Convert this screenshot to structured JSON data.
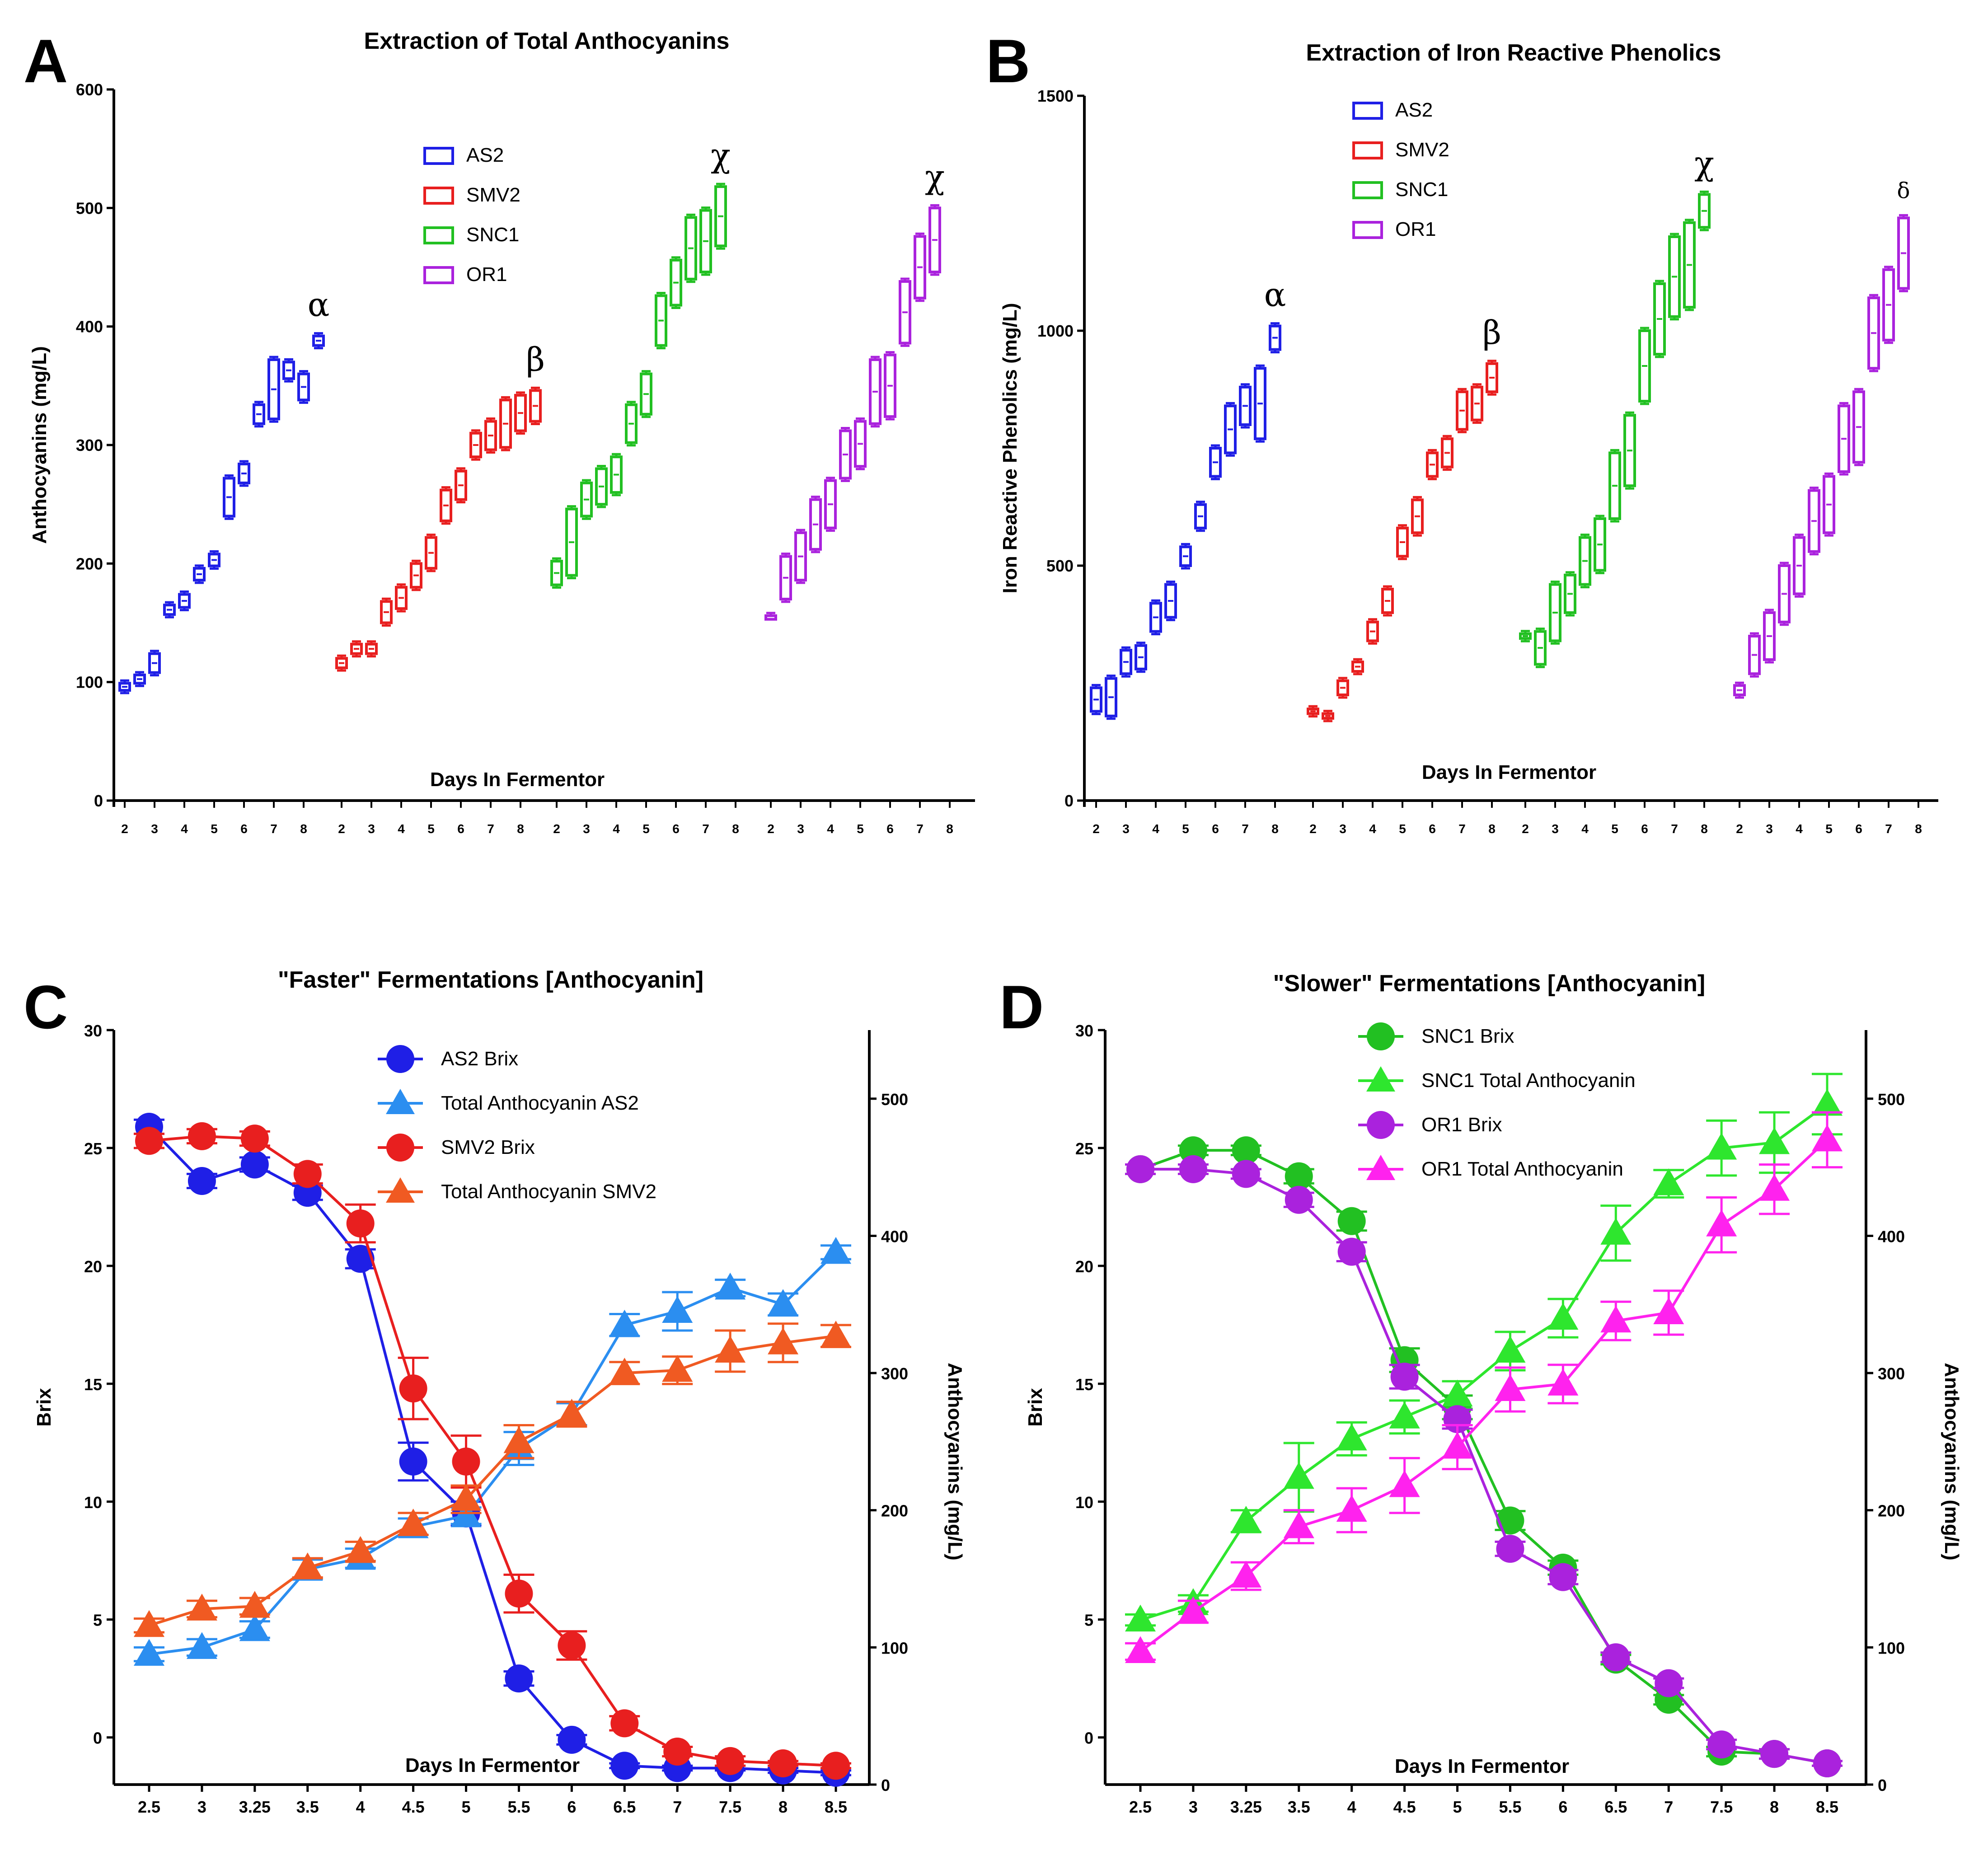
{
  "colors": {
    "AS2": "#1f1fe6",
    "SMV2": "#e81f1f",
    "SNC1": "#22c022",
    "OR1": "#aa22dd",
    "TotalAS2": "#2b8ef0",
    "TotalSMV2": "#f05a22",
    "SNC1Total": "#2ee62e",
    "OR1Total": "#ff22ee"
  },
  "chart_data": [
    {
      "panel": "A",
      "type": "box",
      "title": "Extraction of Total Anthocyanins",
      "ylabel": "Anthocyanins (mg/L)",
      "xlabel": "Days In Fermentor",
      "ylim": [
        0,
        600
      ],
      "yticks": [
        0,
        100,
        200,
        300,
        400,
        500,
        600
      ],
      "legend": [
        "AS2",
        "SMV2",
        "SNC1",
        "OR1"
      ],
      "groups": [
        {
          "name": "AS2",
          "color_key": "AS2",
          "annotation": "α",
          "ticks": [
            "2",
            "3",
            "4",
            "5",
            "6",
            "7",
            "8"
          ],
          "boxes": [
            [
              93,
              99
            ],
            [
              99,
              106
            ],
            [
              108,
              124
            ],
            [
              157,
              165
            ],
            [
              163,
              174
            ],
            [
              186,
              196
            ],
            [
              198,
              208
            ],
            [
              240,
              272
            ],
            [
              268,
              284
            ],
            [
              318,
              334
            ],
            [
              322,
              372
            ],
            [
              356,
              370
            ],
            [
              338,
              360
            ],
            [
              384,
              392
            ]
          ]
        },
        {
          "name": "SMV2",
          "color_key": "SMV2",
          "annotation": "β",
          "ticks": [
            "2",
            "3",
            "4",
            "5",
            "6",
            "7",
            "8"
          ],
          "boxes": [
            [
              112,
              120
            ],
            [
              124,
              132
            ],
            [
              124,
              132
            ],
            [
              150,
              168
            ],
            [
              162,
              180
            ],
            [
              180,
              200
            ],
            [
              196,
              222
            ],
            [
              236,
              262
            ],
            [
              254,
              278
            ],
            [
              290,
              310
            ],
            [
              296,
              320
            ],
            [
              298,
              338
            ],
            [
              312,
              342
            ],
            [
              320,
              346
            ]
          ]
        },
        {
          "name": "SNC1",
          "color_key": "SNC1",
          "annotation": "χ",
          "ticks": [
            "2",
            "3",
            "4",
            "5",
            "6",
            "7",
            "8"
          ],
          "boxes": [
            [
              182,
              202
            ],
            [
              190,
              246
            ],
            [
              240,
              268
            ],
            [
              250,
              280
            ],
            [
              260,
              290
            ],
            [
              302,
              334
            ],
            [
              326,
              360
            ],
            [
              384,
              426
            ],
            [
              418,
              456
            ],
            [
              440,
              492
            ],
            [
              446,
              498
            ],
            [
              468,
              518
            ]
          ]
        },
        {
          "name": "OR1",
          "color_key": "OR1",
          "annotation": "χ",
          "ticks": [
            "2",
            "3",
            "4",
            "5",
            "6",
            "7",
            "8"
          ],
          "boxes": [
            [
              156,
              156
            ],
            [
              170,
              206
            ],
            [
              186,
              226
            ],
            [
              212,
              254
            ],
            [
              230,
              270
            ],
            [
              272,
              312
            ],
            [
              282,
              320
            ],
            [
              318,
              372
            ],
            [
              324,
              376
            ],
            [
              386,
              438
            ],
            [
              424,
              476
            ],
            [
              446,
              500
            ]
          ]
        }
      ]
    },
    {
      "panel": "B",
      "type": "box",
      "title": "Extraction of Iron Reactive Phenolics",
      "ylabel": "Iron Reactive Phenolics (mg/L)",
      "xlabel": "Days In Fermentor",
      "ylim": [
        0,
        1500
      ],
      "yticks": [
        0,
        500,
        1000,
        1500
      ],
      "legend": [
        "AS2",
        "SMV2",
        "SNC1",
        "OR1"
      ],
      "groups": [
        {
          "name": "AS2",
          "color_key": "AS2",
          "annotation": "α",
          "ticks": [
            "2",
            "3",
            "4",
            "5",
            "6",
            "7",
            "8"
          ],
          "boxes": [
            [
              190,
              240
            ],
            [
              180,
              260
            ],
            [
              270,
              320
            ],
            [
              280,
              330
            ],
            [
              360,
              420
            ],
            [
              390,
              460
            ],
            [
              500,
              540
            ],
            [
              580,
              630
            ],
            [
              690,
              750
            ],
            [
              740,
              840
            ],
            [
              800,
              880
            ],
            [
              770,
              920
            ],
            [
              960,
              1010
            ]
          ]
        },
        {
          "name": "SMV2",
          "color_key": "SMV2",
          "annotation": "β",
          "ticks": [
            "2",
            "3",
            "4",
            "5",
            "6",
            "7",
            "8"
          ],
          "boxes": [
            [
              185,
              195
            ],
            [
              175,
              185
            ],
            [
              225,
              255
            ],
            [
              275,
              295
            ],
            [
              340,
              380
            ],
            [
              400,
              450
            ],
            [
              520,
              580
            ],
            [
              570,
              640
            ],
            [
              690,
              740
            ],
            [
              710,
              770
            ],
            [
              790,
              870
            ],
            [
              810,
              880
            ],
            [
              870,
              930
            ]
          ]
        },
        {
          "name": "SNC1",
          "color_key": "SNC1",
          "annotation": "χ",
          "ticks": [
            "2",
            "3",
            "4",
            "5",
            "6",
            "7",
            "8"
          ],
          "boxes": [
            [
              345,
              355
            ],
            [
              290,
              360
            ],
            [
              340,
              460
            ],
            [
              400,
              480
            ],
            [
              460,
              560
            ],
            [
              490,
              600
            ],
            [
              600,
              740
            ],
            [
              670,
              820
            ],
            [
              850,
              1000
            ],
            [
              950,
              1100
            ],
            [
              1030,
              1200
            ],
            [
              1050,
              1230
            ],
            [
              1220,
              1290
            ]
          ]
        },
        {
          "name": "OR1",
          "color_key": "OR1",
          "annotation": "δ",
          "ticks": [
            "2",
            "3",
            "4",
            "5",
            "6",
            "7",
            "8"
          ],
          "boxes": [
            [
              225,
              245
            ],
            [
              270,
              350
            ],
            [
              300,
              400
            ],
            [
              380,
              500
            ],
            [
              440,
              560
            ],
            [
              530,
              660
            ],
            [
              570,
              690
            ],
            [
              700,
              840
            ],
            [
              720,
              870
            ],
            [
              920,
              1070
            ],
            [
              980,
              1130
            ],
            [
              1090,
              1240
            ]
          ]
        }
      ]
    },
    {
      "panel": "C",
      "type": "line",
      "title": "\"Faster\" Fermentations [Anthocyanin]",
      "ylabel": "Brix",
      "y2label": "Anthocyanins (mg/L)",
      "xlabel": "Days In Fermentor",
      "categories": [
        "2.5",
        "3",
        "3.25",
        "3.5",
        "4",
        "4.5",
        "5",
        "5.5",
        "6",
        "6.5",
        "7",
        "7.5",
        "8",
        "8.5"
      ],
      "ylim": [
        -2,
        30
      ],
      "yticks": [
        0,
        5,
        10,
        15,
        20,
        25,
        30
      ],
      "y2lim": [
        0,
        550
      ],
      "y2ticks": [
        0,
        100,
        200,
        300,
        400,
        500
      ],
      "series": [
        {
          "name": "AS2 Brix",
          "axis": "left",
          "marker": "circle",
          "color_key": "AS2",
          "values": [
            25.9,
            23.6,
            24.3,
            23.1,
            20.3,
            11.7,
            9.5,
            2.5,
            -0.1,
            -1.2,
            -1.3,
            -1.3,
            -1.4,
            -1.5
          ],
          "err": [
            0.3,
            0.3,
            0.3,
            0.3,
            0.4,
            0.8,
            0.5,
            0.3,
            0.2,
            0.1,
            0.1,
            0.1,
            0.1,
            0.1
          ]
        },
        {
          "name": "Total Anthocyanin AS2",
          "axis": "right",
          "marker": "triangle",
          "color_key": "TotalAS2",
          "values": [
            95,
            100,
            113,
            157,
            165,
            188,
            196,
            245,
            270,
            335,
            345,
            362,
            350,
            388
          ],
          "err": [
            5,
            6,
            6,
            7,
            7,
            6,
            6,
            12,
            8,
            8,
            14,
            6,
            8,
            5
          ]
        },
        {
          "name": "SMV2 Brix",
          "axis": "left",
          "marker": "circle",
          "color_key": "SMV2",
          "values": [
            25.3,
            25.5,
            25.4,
            23.9,
            21.8,
            14.8,
            11.7,
            6.1,
            3.9,
            0.6,
            -0.6,
            -1.0,
            -1.1,
            -1.2
          ],
          "err": [
            0.3,
            0.3,
            0.3,
            0.4,
            0.8,
            1.3,
            1.1,
            0.8,
            0.6,
            0.3,
            0.2,
            0.2,
            0.1,
            0.1
          ]
        },
        {
          "name": "Total Anthocyanin SMV2",
          "axis": "right",
          "marker": "triangle",
          "color_key": "TotalSMV2",
          "values": [
            116,
            128,
            130,
            158,
            170,
            190,
            208,
            250,
            270,
            300,
            302,
            316,
            322,
            327
          ],
          "err": [
            5,
            6,
            6,
            7,
            7,
            8,
            10,
            12,
            9,
            8,
            10,
            15,
            14,
            8
          ]
        }
      ]
    },
    {
      "panel": "D",
      "type": "line",
      "title": "\"Slower\" Fermentations [Anthocyanin]",
      "ylabel": "Brix",
      "y2label": "Anthocyanins (mg/L)",
      "xlabel": "Days In Fermentor",
      "categories": [
        "2.5",
        "3",
        "3.25",
        "3.5",
        "4",
        "4.5",
        "5",
        "5.5",
        "6",
        "6.5",
        "7",
        "7.5",
        "8",
        "8.5"
      ],
      "ylim": [
        -2,
        30
      ],
      "yticks": [
        0,
        5,
        10,
        15,
        20,
        25,
        30
      ],
      "y2lim": [
        0,
        550
      ],
      "y2ticks": [
        0,
        100,
        200,
        300,
        400,
        500
      ],
      "series": [
        {
          "name": "SNC1 Brix",
          "axis": "left",
          "marker": "circle",
          "color_key": "SNC1",
          "values": [
            24.1,
            24.9,
            24.9,
            23.8,
            21.9,
            16.0,
            14.0,
            9.2,
            7.2,
            3.3,
            1.6,
            -0.6,
            -0.7,
            -1.1
          ],
          "err": [
            0.2,
            0.2,
            0.2,
            0.3,
            0.4,
            0.5,
            0.5,
            0.4,
            0.3,
            0.2,
            0.2,
            0.2,
            0.2,
            0.1
          ]
        },
        {
          "name": "SNC1 Total Anthocyanin",
          "axis": "right",
          "marker": "triangle",
          "color_key": "SNC1Total",
          "values": [
            120,
            132,
            192,
            224,
            252,
            268,
            284,
            316,
            340,
            402,
            438,
            464,
            468,
            496
          ],
          "err": [
            4,
            6,
            8,
            25,
            12,
            12,
            10,
            14,
            14,
            20,
            10,
            20,
            22,
            22
          ]
        },
        {
          "name": "OR1 Brix",
          "axis": "left",
          "marker": "circle",
          "color_key": "OR1",
          "values": [
            24.1,
            24.1,
            23.9,
            22.8,
            20.6,
            15.3,
            13.5,
            8.0,
            6.8,
            3.4,
            2.3,
            -0.3,
            -0.7,
            -1.1
          ],
          "err": [
            0.2,
            0.2,
            0.2,
            0.3,
            0.4,
            0.5,
            0.4,
            0.3,
            0.3,
            0.2,
            0.2,
            0.2,
            0.2,
            0.1
          ]
        },
        {
          "name": "OR1 Total Anthocyanin",
          "axis": "right",
          "marker": "triangle",
          "color_key": "OR1Total",
          "values": [
            97,
            126,
            152,
            188,
            200,
            218,
            246,
            288,
            292,
            338,
            344,
            408,
            434,
            470
          ],
          "err": [
            6,
            8,
            10,
            12,
            16,
            20,
            16,
            16,
            14,
            14,
            16,
            20,
            18,
            20
          ]
        }
      ]
    }
  ]
}
